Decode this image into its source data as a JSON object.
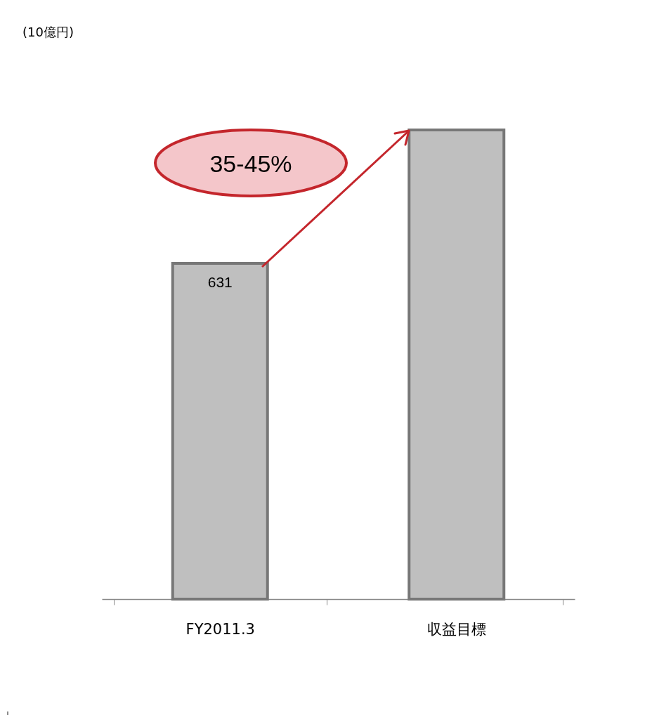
{
  "chart_data": {
    "type": "bar",
    "categories": [
      "FY2011.3",
      "収益目標"
    ],
    "values": [
      631,
      882
    ],
    "value_labels": [
      "631",
      null
    ],
    "color": "#bfbfbf",
    "annotations": [
      "(10億円)",
      "35-45%"
    ]
  }
}
